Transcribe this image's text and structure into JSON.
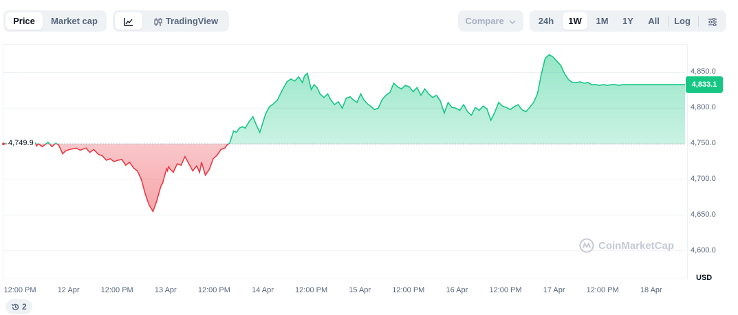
{
  "toolbar": {
    "metric_tabs": [
      "Price",
      "Market cap"
    ],
    "active_metric": "Price",
    "tradingview_label": "TradingView",
    "compare_label": "Compare",
    "ranges": [
      "24h",
      "1W",
      "1M",
      "1Y",
      "All"
    ],
    "active_range": "1W",
    "log_label": "Log"
  },
  "chart_data": {
    "type": "area",
    "title": "",
    "xlabel": "",
    "ylabel": "",
    "currency": "USD",
    "ylim": [
      4560,
      4890
    ],
    "y_ticks": [
      "4,850.0",
      "4,800.0",
      "4,750.0",
      "4,700.0",
      "4,650.0",
      "4,600.0"
    ],
    "x_ticks": [
      "12:00 PM",
      "12 Apr",
      "12:00 PM",
      "13 Apr",
      "12:00 PM",
      "14 Apr",
      "12:00 PM",
      "15 Apr",
      "12:00 PM",
      "16 Apr",
      "12:00 PM",
      "17 Apr",
      "12:00 PM",
      "18 Apr"
    ],
    "baseline": 4749.9,
    "baseline_label": "4,749.9",
    "current_price_label": "4,833.1",
    "colors": {
      "up": "#16c784",
      "down": "#ea3943"
    },
    "grid": true,
    "series": [
      {
        "x": [
          0,
          0.17,
          0.28,
          0.31,
          0.33,
          0.34,
          0.36,
          0.4,
          0.46,
          0.5,
          0.54,
          0.57,
          0.61,
          0.64,
          0.68,
          0.75,
          0.79,
          0.85,
          0.89,
          0.93,
          0.98,
          1.02,
          1.06,
          1.1,
          1.14,
          1.18,
          1.22,
          1.26,
          1.3,
          1.34,
          1.38,
          1.42,
          1.46,
          1.5,
          1.54,
          1.58,
          1.62,
          1.64,
          1.66,
          1.68,
          1.69,
          1.7,
          1.72,
          1.75,
          1.79,
          1.83,
          1.87,
          1.91,
          1.95,
          1.99,
          2.02,
          2.04,
          2.08,
          2.12,
          2.16,
          2.2,
          2.24,
          2.28,
          2.3,
          2.33,
          2.37,
          2.4,
          2.43,
          2.46,
          2.49,
          2.53,
          2.57,
          2.6,
          2.64,
          2.7,
          2.74,
          2.78,
          2.82,
          2.87,
          2.92,
          2.96,
          3.0,
          3.04,
          3.08,
          3.1,
          3.13,
          3.17,
          3.2,
          3.23,
          3.26,
          3.3,
          3.34,
          3.37,
          3.41,
          3.45,
          3.49,
          3.53,
          3.57,
          3.6,
          3.64,
          3.68,
          3.71,
          3.75,
          3.79,
          3.82,
          3.86,
          3.9,
          3.94,
          3.98,
          4.02,
          4.06,
          4.1,
          4.14,
          4.18,
          4.22,
          4.26,
          4.3,
          4.34,
          4.38,
          4.42,
          4.46,
          4.5,
          4.54,
          4.58,
          4.62,
          4.66,
          4.7,
          4.74,
          4.78,
          4.82,
          4.86,
          4.9,
          4.94,
          4.98,
          5.02,
          5.06,
          5.1,
          5.14,
          5.18,
          5.22,
          5.26,
          5.3,
          5.34,
          5.38,
          5.42,
          5.46,
          5.5,
          5.54,
          5.58,
          5.62,
          5.66,
          5.7,
          5.74,
          5.78,
          5.82,
          5.86,
          5.9,
          5.94,
          5.98,
          6.02,
          6.06,
          6.1,
          6.14,
          6.18,
          6.22,
          6.26,
          6.3,
          6.34,
          6.38,
          6.42,
          6.46,
          6.5,
          6.54,
          6.58,
          6.62,
          6.66,
          6.7,
          6.74,
          6.78,
          6.82,
          6.86,
          6.9,
          6.94,
          6.98,
          7.02
        ],
        "y": [
          4750,
          4750,
          4749,
          4752,
          4751,
          4747,
          4750,
          4746,
          4752,
          4746,
          4751,
          4748,
          4736,
          4740,
          4742,
          4744,
          4741,
          4744,
          4738,
          4742,
          4735,
          4733,
          4727,
          4729,
          4725,
          4727,
          4728,
          4720,
          4724,
          4716,
          4712,
          4700,
          4680,
          4664,
          4655,
          4670,
          4690,
          4695,
          4705,
          4715,
          4712,
          4718,
          4714,
          4710,
          4722,
          4720,
          4732,
          4722,
          4712,
          4719,
          4710,
          4724,
          4706,
          4714,
          4729,
          4734,
          4742,
          4744,
          4748,
          4751,
          4768,
          4766,
          4772,
          4774,
          4772,
          4781,
          4788,
          4778,
          4766,
          4792,
          4802,
          4806,
          4811,
          4825,
          4837,
          4841,
          4838,
          4844,
          4836,
          4845,
          4849,
          4826,
          4833,
          4829,
          4820,
          4815,
          4820,
          4812,
          4805,
          4809,
          4800,
          4814,
          4816,
          4812,
          4808,
          4820,
          4812,
          4806,
          4802,
          4798,
          4800,
          4812,
          4818,
          4822,
          4835,
          4830,
          4827,
          4832,
          4830,
          4823,
          4829,
          4818,
          4827,
          4820,
          4815,
          4818,
          4810,
          4793,
          4808,
          4801,
          4800,
          4797,
          4805,
          4795,
          4790,
          4801,
          4797,
          4803,
          4799,
          4783,
          4794,
          4808,
          4803,
          4801,
          4798,
          4802,
          4805,
          4798,
          4795,
          4801,
          4808,
          4820,
          4848,
          4870,
          4875,
          4872,
          4866,
          4860,
          4848,
          4840,
          4836,
          4836,
          4837,
          4835,
          4836,
          4833,
          4833,
          4832,
          4833,
          4832,
          4833,
          4833,
          4832,
          4833,
          4833,
          4833,
          4833,
          4833,
          4833,
          4833,
          4833,
          4833,
          4833,
          4833,
          4833,
          4833,
          4833,
          4833,
          4833,
          4833
        ]
      }
    ]
  },
  "watermark": "CoinMarketCap",
  "history_count": "2"
}
